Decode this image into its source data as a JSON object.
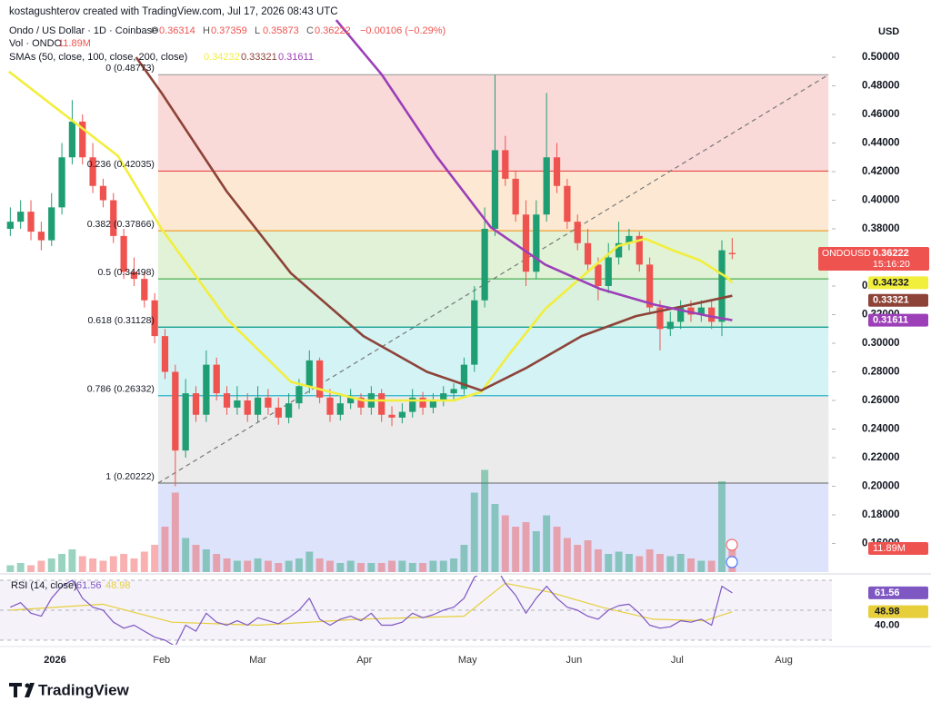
{
  "header": {
    "author_line": "kostagushterov created with TradingView.com, Jul 17, 2026 08:43 UTC",
    "symbol": "Ondo / US Dollar · 1D · Coinbase",
    "ohlc_letters": [
      "O",
      "H",
      "L",
      "C"
    ],
    "change": "−0.00106 (−0.29%)",
    "vol_label": "Vol · ONDO",
    "sma_label": "SMAs (50, close, 100, close, 200, close)",
    "rsi_label": "RSI (14, close)",
    "currency": "USD",
    "ticker": "ONDOUSD",
    "countdown": "15:16:20",
    "brand": "TradingView"
  },
  "chart_data": {
    "type": "candlestick",
    "up_color": "#1f9e74",
    "down_color": "#ef5350",
    "x": [
      -12,
      -9,
      -6,
      -3,
      0,
      3,
      6,
      9,
      12,
      15,
      18,
      21,
      24,
      27,
      30,
      33,
      36,
      39,
      42,
      45,
      48,
      51,
      54,
      57,
      60,
      63,
      66,
      69,
      72,
      75,
      78,
      81,
      84,
      87,
      90,
      93,
      96,
      99,
      102,
      105,
      108,
      111,
      114,
      117,
      120,
      123,
      126,
      129,
      132,
      135,
      138,
      141,
      144,
      147,
      150,
      153,
      156,
      159,
      162,
      165,
      168,
      171,
      174,
      177,
      180,
      183,
      186,
      189,
      192,
      195,
      198
    ],
    "open": [
      0.38,
      0.385,
      0.392,
      0.378,
      0.372,
      0.395,
      0.43,
      0.455,
      0.43,
      0.41,
      0.4,
      0.375,
      0.35,
      0.345,
      0.33,
      0.305,
      0.28,
      0.225,
      0.265,
      0.25,
      0.285,
      0.265,
      0.255,
      0.26,
      0.25,
      0.262,
      0.255,
      0.248,
      0.258,
      0.27,
      0.288,
      0.262,
      0.25,
      0.258,
      0.262,
      0.255,
      0.265,
      0.25,
      0.248,
      0.252,
      0.262,
      0.255,
      0.26,
      0.265,
      0.268,
      0.285,
      0.33,
      0.38,
      0.435,
      0.415,
      0.39,
      0.35,
      0.39,
      0.43,
      0.41,
      0.385,
      0.37,
      0.355,
      0.34,
      0.36,
      0.37,
      0.375,
      0.355,
      0.325,
      0.31,
      0.315,
      0.325,
      0.32,
      0.325,
      0.315,
      0.36314
    ],
    "high": [
      0.395,
      0.4,
      0.4,
      0.385,
      0.405,
      0.44,
      0.47,
      0.46,
      0.44,
      0.415,
      0.405,
      0.38,
      0.36,
      0.35,
      0.335,
      0.31,
      0.285,
      0.275,
      0.27,
      0.295,
      0.29,
      0.27,
      0.27,
      0.265,
      0.27,
      0.268,
      0.262,
      0.265,
      0.275,
      0.295,
      0.29,
      0.268,
      0.265,
      0.268,
      0.265,
      0.27,
      0.268,
      0.256,
      0.258,
      0.268,
      0.266,
      0.265,
      0.27,
      0.272,
      0.29,
      0.34,
      0.395,
      0.48773,
      0.445,
      0.42,
      0.4,
      0.4,
      0.475,
      0.44,
      0.415,
      0.39,
      0.38,
      0.36,
      0.37,
      0.385,
      0.38,
      0.378,
      0.36,
      0.33,
      0.322,
      0.33,
      0.33,
      0.33,
      0.33,
      0.372,
      0.37359
    ],
    "low": [
      0.375,
      0.38,
      0.372,
      0.365,
      0.368,
      0.39,
      0.425,
      0.425,
      0.405,
      0.395,
      0.37,
      0.345,
      0.34,
      0.325,
      0.3,
      0.275,
      0.2,
      0.22,
      0.245,
      0.245,
      0.26,
      0.25,
      0.25,
      0.245,
      0.245,
      0.25,
      0.243,
      0.244,
      0.254,
      0.265,
      0.258,
      0.245,
      0.246,
      0.254,
      0.25,
      0.25,
      0.245,
      0.242,
      0.244,
      0.248,
      0.25,
      0.251,
      0.256,
      0.26,
      0.264,
      0.28,
      0.325,
      0.375,
      0.41,
      0.385,
      0.34,
      0.345,
      0.385,
      0.405,
      0.38,
      0.365,
      0.35,
      0.33,
      0.335,
      0.355,
      0.365,
      0.35,
      0.32,
      0.295,
      0.305,
      0.31,
      0.315,
      0.315,
      0.31,
      0.305,
      0.35873
    ],
    "close": [
      0.385,
      0.392,
      0.378,
      0.372,
      0.395,
      0.43,
      0.455,
      0.43,
      0.41,
      0.4,
      0.375,
      0.35,
      0.345,
      0.33,
      0.305,
      0.28,
      0.225,
      0.265,
      0.25,
      0.285,
      0.265,
      0.255,
      0.26,
      0.25,
      0.262,
      0.255,
      0.248,
      0.258,
      0.27,
      0.288,
      0.262,
      0.25,
      0.258,
      0.262,
      0.255,
      0.265,
      0.25,
      0.248,
      0.252,
      0.262,
      0.255,
      0.26,
      0.265,
      0.268,
      0.285,
      0.33,
      0.38,
      0.435,
      0.415,
      0.39,
      0.35,
      0.39,
      0.43,
      0.41,
      0.385,
      0.37,
      0.355,
      0.34,
      0.36,
      0.37,
      0.375,
      0.355,
      0.325,
      0.31,
      0.315,
      0.325,
      0.32,
      0.325,
      0.315,
      0.365,
      0.36222
    ],
    "volume": {
      "values": [
        3,
        4,
        3,
        5,
        6,
        8,
        10,
        7,
        6,
        5,
        7,
        8,
        6,
        9,
        12,
        20,
        35,
        15,
        12,
        10,
        8,
        6,
        5,
        5,
        6,
        5,
        4,
        5,
        6,
        9,
        6,
        5,
        4,
        5,
        4,
        4,
        4,
        5,
        5,
        4,
        4,
        5,
        5,
        6,
        12,
        35,
        45,
        30,
        25,
        20,
        22,
        18,
        25,
        20,
        15,
        12,
        14,
        10,
        8,
        9,
        8,
        7,
        10,
        8,
        7,
        8,
        6,
        5,
        5,
        40,
        11.89
      ],
      "label": "11.89M"
    },
    "xlim": [
      -15,
      227
    ],
    "xticks": [
      {
        "value": 1,
        "label": "2026"
      },
      {
        "value": 32,
        "label": "Feb"
      },
      {
        "value": 60,
        "label": "Mar"
      },
      {
        "value": 91,
        "label": "Apr"
      },
      {
        "value": 121,
        "label": "May"
      },
      {
        "value": 152,
        "label": "Jun"
      },
      {
        "value": 182,
        "label": "Jul"
      },
      {
        "value": 213,
        "label": "Aug"
      }
    ],
    "ylim": [
      0.14,
      0.54
    ],
    "yticks": [
      {
        "value": 0.16,
        "label": "0.16000"
      },
      {
        "value": 0.18,
        "label": "0.18000"
      },
      {
        "value": 0.2,
        "label": "0.20000"
      },
      {
        "value": 0.22,
        "label": "0.22000"
      },
      {
        "value": 0.24,
        "label": "0.24000"
      },
      {
        "value": 0.26,
        "label": "0.26000"
      },
      {
        "value": 0.28,
        "label": "0.28000"
      },
      {
        "value": 0.3,
        "label": "0.30000"
      },
      {
        "value": 0.32,
        "label": "0.32000"
      },
      {
        "value": 0.34,
        "label": "0.34000"
      },
      {
        "value": 0.36,
        "label": "0.36000"
      },
      {
        "value": 0.38,
        "label": "0.38000"
      },
      {
        "value": 0.4,
        "label": "0.40000"
      },
      {
        "value": 0.42,
        "label": "0.42000"
      },
      {
        "value": 0.44,
        "label": "0.44000"
      },
      {
        "value": 0.46,
        "label": "0.46000"
      },
      {
        "value": 0.48,
        "label": "0.48000"
      },
      {
        "value": 0.5,
        "label": "0.50000"
      }
    ],
    "fib": {
      "x": [
        31,
        226
      ],
      "levels": [
        {
          "value": 0.48773,
          "label": "0 (0.48773)",
          "color": "#9e9e9e",
          "fill": "#f9d2d2"
        },
        {
          "value": 0.42035,
          "label": "0.236 (0.42035)",
          "color": "#e64a4a",
          "fill": "#fde5cb"
        },
        {
          "value": 0.37866,
          "label": "0.382 (0.37866)",
          "color": "#f0a030",
          "fill": "#ddf0d0"
        },
        {
          "value": 0.34498,
          "label": "0.5 (0.34498)",
          "color": "#4caf50",
          "fill": "#d3eed9"
        },
        {
          "value": 0.31128,
          "label": "0.618 (0.31128)",
          "color": "#009688",
          "fill": "#cdf1f3"
        },
        {
          "value": 0.26332,
          "label": "0.786 (0.26332)",
          "color": "#26b4c8",
          "fill": "#e8e8e8"
        },
        {
          "value": 0.20222,
          "label": "1 (0.20222)",
          "color": "#808080",
          "fill": "#d7defa"
        }
      ]
    },
    "smas": [
      {
        "color": "#f2ee3c",
        "x": [
          -12.4,
          19.3,
          32,
          51,
          69.6,
          90.7,
          117,
          125,
          133,
          143.6,
          154,
          164.8,
          172.7,
          180.7,
          188.6,
          196.5,
          198
        ],
        "values": [
          0.49,
          0.431,
          0.38,
          0.317,
          0.273,
          0.26,
          0.26,
          0.266,
          0.292,
          0.324,
          0.346,
          0.368,
          0.373,
          0.365,
          0.358,
          0.346,
          0.34232
        ]
      },
      {
        "color": "#8d4338",
        "x": [
          24.6,
          32,
          51,
          69.6,
          90.7,
          109.2,
          125,
          138.3,
          154.2,
          170,
          185.9,
          198
        ],
        "values": [
          0.5,
          0.475,
          0.406,
          0.349,
          0.305,
          0.28,
          0.267,
          0.283,
          0.305,
          0.319,
          0.327,
          0.33321
        ]
      },
      {
        "color": "#9c3fb8",
        "x": [
          82.8,
          96,
          111.9,
          127.8,
          143.6,
          159.5,
          175.4,
          191.3,
          198
        ],
        "values": [
          0.526,
          0.488,
          0.431,
          0.381,
          0.355,
          0.338,
          0.327,
          0.319,
          0.31611
        ]
      }
    ],
    "rsi": {
      "color": "#7e57c2",
      "ylim": [
        27,
        73
      ],
      "levels": [
        70,
        50,
        30
      ],
      "yticks": [
        {
          "value": 40,
          "label": "40.00"
        }
      ],
      "values": [
        52,
        55,
        48,
        46,
        58,
        66,
        70,
        58,
        52,
        50,
        42,
        38,
        40,
        36,
        32,
        30,
        26,
        40,
        36,
        48,
        42,
        40,
        43,
        40,
        45,
        43,
        41,
        45,
        50,
        58,
        44,
        40,
        44,
        46,
        43,
        48,
        40,
        40,
        42,
        48,
        45,
        47,
        50,
        52,
        58,
        72,
        76,
        80,
        68,
        60,
        48,
        58,
        66,
        58,
        52,
        50,
        46,
        44,
        50,
        53,
        54,
        48,
        40,
        38,
        39,
        43,
        42,
        44,
        40,
        66,
        61.56
      ],
      "ma": {
        "color": "#e6cf3a",
        "x": [
          -12,
          15,
          35,
          60,
          90,
          120,
          132,
          145,
          160,
          175,
          190,
          198
        ],
        "values": [
          50,
          54,
          42,
          40,
          44,
          46,
          68,
          62,
          52,
          44,
          43,
          48.98
        ]
      }
    }
  }
}
